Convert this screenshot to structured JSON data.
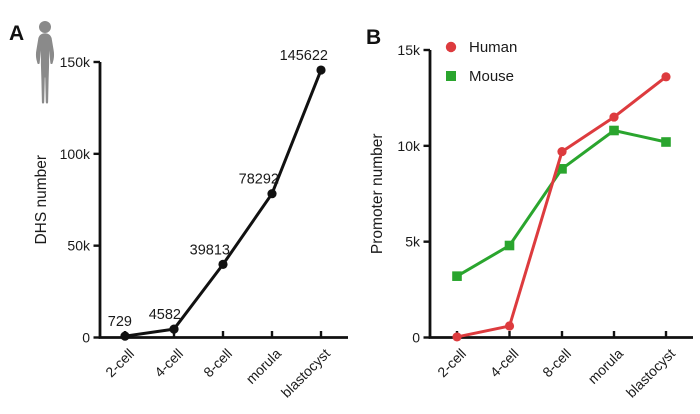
{
  "figure": {
    "panel_a_letter": "A",
    "panel_b_letter": "B",
    "background": "#ffffff",
    "icon_color": "#8a8a8a",
    "axis_color": "#111111"
  },
  "chart_data": [
    {
      "type": "line",
      "panel": "A",
      "title": "",
      "categories": [
        "2-cell",
        "4-cell",
        "8-cell",
        "morula",
        "blastocyst"
      ],
      "series": [
        {
          "name": "DHS",
          "color": "#111111",
          "marker": "circle",
          "values": [
            729,
            4582,
            39813,
            78292,
            145622
          ],
          "point_labels": [
            "729",
            "4582",
            "39813",
            "78292",
            "145622"
          ]
        }
      ],
      "ylabel": "DHS number",
      "xlabel": "",
      "ylim": [
        0,
        150000
      ],
      "yticks": [
        {
          "value": 0,
          "label": "0"
        },
        {
          "value": 50000,
          "label": "50k"
        },
        {
          "value": 100000,
          "label": "100k"
        },
        {
          "value": 150000,
          "label": "150k"
        }
      ],
      "grid": false,
      "legend": false
    },
    {
      "type": "line",
      "panel": "B",
      "title": "",
      "categories": [
        "2-cell",
        "4-cell",
        "8-cell",
        "morula",
        "blastocyst"
      ],
      "series": [
        {
          "name": "Mouse",
          "color": "#2aa52e",
          "marker": "square",
          "values": [
            3200,
            4800,
            8800,
            10800,
            10200
          ]
        },
        {
          "name": "Human",
          "color": "#dd3b3e",
          "marker": "circle",
          "values": [
            30,
            600,
            9700,
            11500,
            13600
          ]
        }
      ],
      "legend_order": [
        "Human",
        "Mouse"
      ],
      "ylabel": "Promoter number",
      "xlabel": "",
      "ylim": [
        0,
        15000
      ],
      "yticks": [
        {
          "value": 0,
          "label": "0"
        },
        {
          "value": 5000,
          "label": "5k"
        },
        {
          "value": 10000,
          "label": "10k"
        },
        {
          "value": 15000,
          "label": "15k"
        }
      ],
      "grid": false,
      "legend": true,
      "legend_position": "top-left"
    }
  ]
}
